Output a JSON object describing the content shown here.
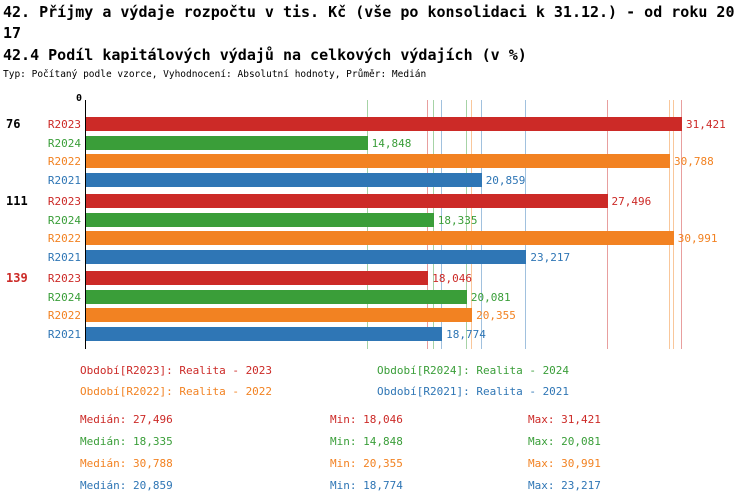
{
  "page": {
    "title_line1": "42. Příjmy a výdaje rozpočtu v tis. Kč (vše po konsolidaci k 31.12.) - od roku 20",
    "title_line2": "17",
    "subtitle": "42.4 Podíl kapitálových výdajů na celkových výdajích (v %)",
    "meta": "Typ: Počítaný podle vzorce, Vyhodnocení: Absolutní hodnoty, Průměr: Medián"
  },
  "chart_data": {
    "type": "bar",
    "orientation": "horizontal",
    "value_unit": "%",
    "axis": {
      "origin_label": "0",
      "xlim": [
        0,
        32.3
      ],
      "tick_labels": [
        "0"
      ]
    },
    "legend_position": "bottom",
    "series": [
      {
        "id": "R2023",
        "label": "R2023",
        "legend": "Období[R2023]: Realita - 2023",
        "color": "#cc2a27"
      },
      {
        "id": "R2024",
        "label": "R2024",
        "legend": "Období[R2024]: Realita - 2024",
        "color": "#3a9e39"
      },
      {
        "id": "R2022",
        "label": "R2022",
        "legend": "Období[R2022]: Realita - 2022",
        "color": "#f28222"
      },
      {
        "id": "R2021",
        "label": "R2021",
        "legend": "Období[R2021]: Realita - 2021",
        "color": "#2f76b5"
      }
    ],
    "groups": [
      {
        "label": "76",
        "label_color": "#000000",
        "values": [
          31.421,
          14.848,
          30.788,
          20.859
        ],
        "value_labels": [
          "31,421",
          "14,848",
          "30,788",
          "20,859"
        ]
      },
      {
        "label": "111",
        "label_color": "#000000",
        "values": [
          27.496,
          18.335,
          30.991,
          23.217
        ],
        "value_labels": [
          "27,496",
          "18,335",
          "30,991",
          "23,217"
        ]
      },
      {
        "label": "139",
        "label_color": "#cc2a27",
        "values": [
          18.046,
          20.081,
          20.355,
          18.774
        ],
        "value_labels": [
          "18,046",
          "20,081",
          "20,355",
          "18,774"
        ]
      }
    ],
    "guides": {
      "R2023": [
        27.496,
        18.046,
        31.421
      ],
      "R2024": [
        18.335,
        14.848,
        20.081
      ],
      "R2022": [
        30.788,
        20.355,
        30.991
      ],
      "R2021": [
        20.859,
        18.774,
        23.217
      ]
    },
    "stats": [
      {
        "series": "R2023",
        "median": "Medián: 27,496",
        "min": "Min: 18,046",
        "max": "Max: 31,421"
      },
      {
        "series": "R2024",
        "median": "Medián: 18,335",
        "min": "Min: 14,848",
        "max": "Max: 20,081"
      },
      {
        "series": "R2022",
        "median": "Medián: 30,788",
        "min": "Min: 20,355",
        "max": "Max: 30,991"
      },
      {
        "series": "R2021",
        "median": "Medián: 20,859",
        "min": "Min: 18,774",
        "max": "Max: 23,217"
      }
    ]
  }
}
